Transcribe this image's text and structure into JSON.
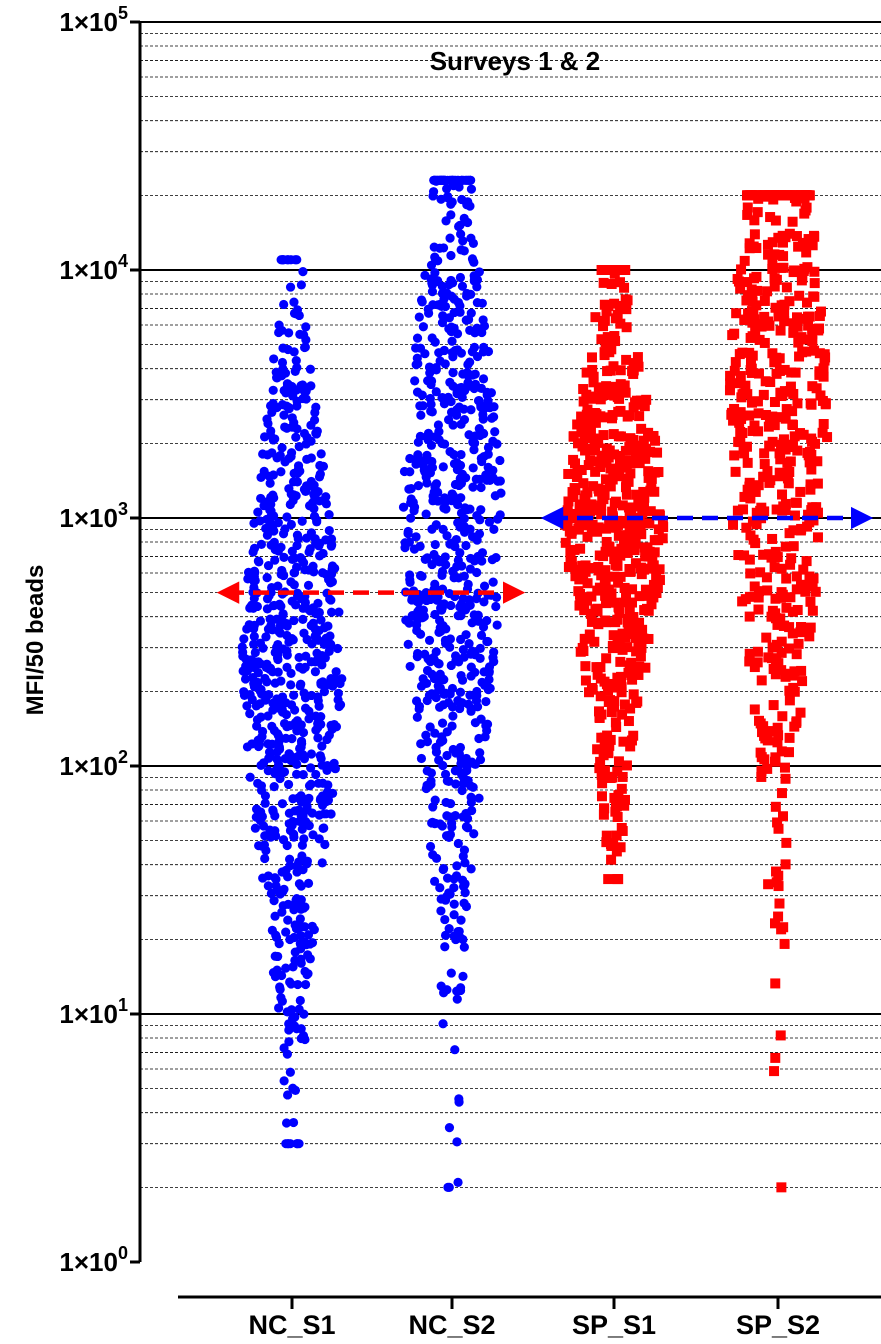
{
  "chart_data": {
    "type": "scatter",
    "title": "Surveys 1 & 2",
    "xlabel": "",
    "ylabel": "MFI/50 beads",
    "yscale": "log",
    "ylim": [
      1,
      100000
    ],
    "grid": true,
    "categories": [
      "NC_S1",
      "NC_S2",
      "SP_S1",
      "SP_S2"
    ],
    "yticks": [
      {
        "value": 1,
        "base": "1×10",
        "exp": "0"
      },
      {
        "value": 10,
        "base": "1×10",
        "exp": "1"
      },
      {
        "value": 100,
        "base": "1×10",
        "exp": "2"
      },
      {
        "value": 1000,
        "base": "1×10",
        "exp": "3"
      },
      {
        "value": 10000,
        "base": "1×10",
        "exp": "4"
      },
      {
        "value": 100000,
        "base": "1×10",
        "exp": "5"
      }
    ],
    "series": [
      {
        "category": "NC_S1",
        "marker": "circle",
        "color": "#0000ff",
        "min": 3,
        "max": 11000,
        "median": 250
      },
      {
        "category": "NC_S2",
        "marker": "circle",
        "color": "#0000ff",
        "min": 2,
        "max": 23000,
        "median": 900
      },
      {
        "category": "SP_S1",
        "marker": "square",
        "color": "#ff0000",
        "min": 35,
        "max": 10000,
        "median": 900
      },
      {
        "category": "SP_S2",
        "marker": "square",
        "color": "#ff0000",
        "min": 2,
        "max": 20000,
        "median": 2500
      }
    ],
    "reference_lines": [
      {
        "value": 500,
        "from": "NC_S1",
        "to": "NC_S2",
        "color": "#ff0000",
        "style": "dashed-double-arrow"
      },
      {
        "value": 1000,
        "from": "SP_S1",
        "to": "SP_S2",
        "color": "#0000ff",
        "style": "dashed-double-arrow"
      }
    ]
  }
}
